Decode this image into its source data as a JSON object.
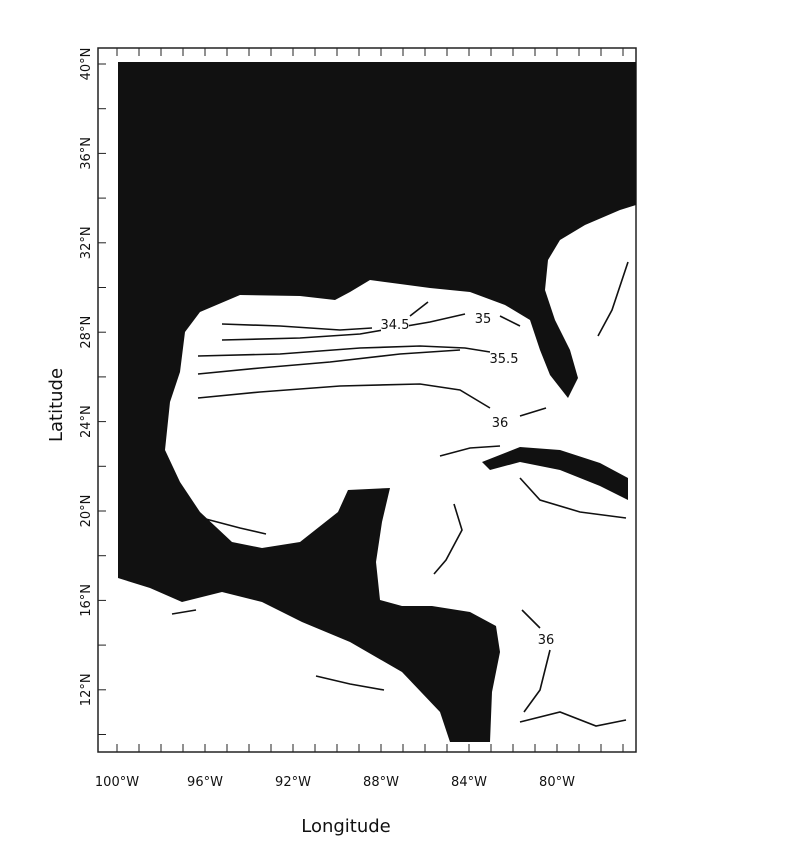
{
  "x_axis": {
    "label": "Longitude",
    "ticks": [
      "100°W",
      "96°W",
      "92°W",
      "88°W",
      "84°W",
      "80°W"
    ]
  },
  "y_axis": {
    "label": "Latitude",
    "ticks": [
      "40°N",
      "36°N",
      "32°N",
      "28°N",
      "24°N",
      "20°N",
      "16°N",
      "12°N"
    ]
  },
  "contour_labels": [
    "34.5",
    "35",
    "35.5",
    "36",
    "36"
  ]
}
